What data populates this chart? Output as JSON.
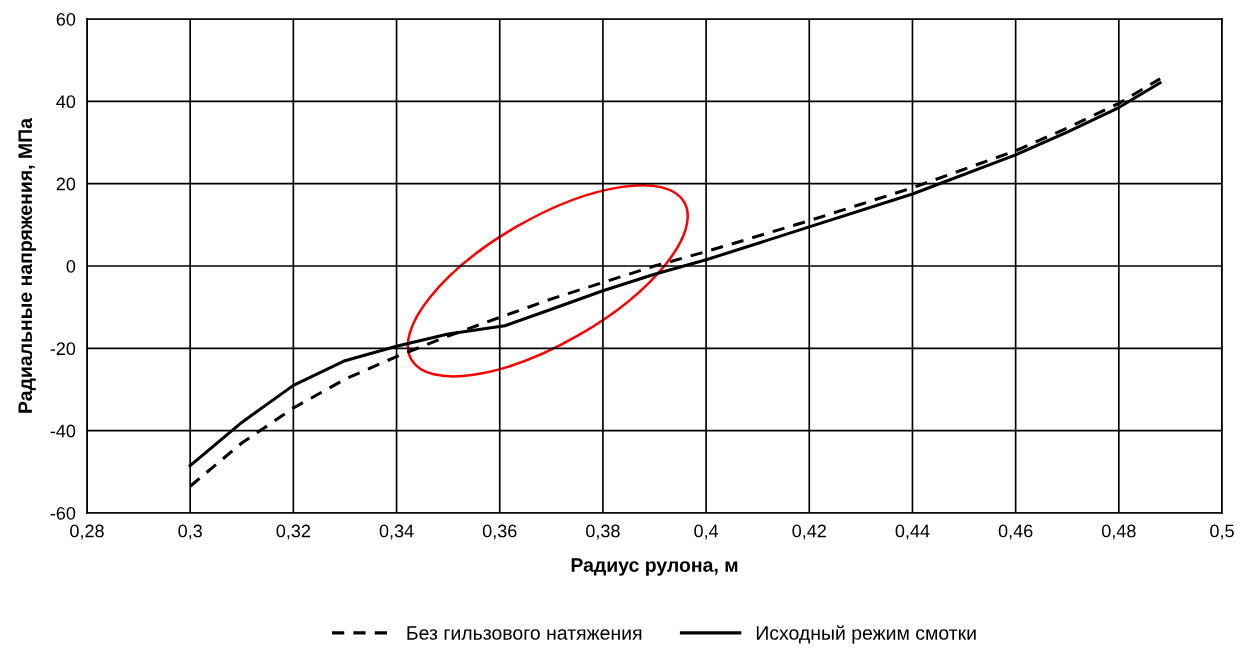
{
  "chart_data": {
    "type": "line",
    "xlabel": "Радиус рулона, м",
    "ylabel": "Радиальные напряжения, МПа",
    "xlim": [
      0.28,
      0.5
    ],
    "xticks": [
      {
        "value": 0.28,
        "label": "0,28"
      },
      {
        "value": 0.3,
        "label": "0,3"
      },
      {
        "value": 0.32,
        "label": "0,32"
      },
      {
        "value": 0.34,
        "label": "0,34"
      },
      {
        "value": 0.36,
        "label": "0,36"
      },
      {
        "value": 0.38,
        "label": "0,38"
      },
      {
        "value": 0.4,
        "label": "0,4"
      },
      {
        "value": 0.42,
        "label": "0,42"
      },
      {
        "value": 0.44,
        "label": "0,44"
      },
      {
        "value": 0.46,
        "label": "0,46"
      },
      {
        "value": 0.48,
        "label": "0,48"
      },
      {
        "value": 0.5,
        "label": "0,5"
      }
    ],
    "ylim": [
      -60,
      60
    ],
    "yticks": [
      -60,
      -40,
      -20,
      0,
      20,
      40,
      60
    ],
    "grid": true,
    "legend": "bottom",
    "series": [
      {
        "name": "Без гильзового натяжения",
        "color": "#000000",
        "line_style": "dashed",
        "x": [
          0.3,
          0.31,
          0.32,
          0.33,
          0.34,
          0.35,
          0.36,
          0.37,
          0.38,
          0.39,
          0.4,
          0.42,
          0.44,
          0.46,
          0.47,
          0.48,
          0.488
        ],
        "values": [
          -53.5,
          -43,
          -34.5,
          -27.5,
          -22,
          -17,
          -12.5,
          -8,
          -4,
          0,
          3.5,
          11,
          19,
          28,
          33.5,
          39.5,
          45.5
        ]
      },
      {
        "name": "Исходный режим смотки",
        "color": "#000000",
        "line_style": "solid",
        "x": [
          0.3,
          0.31,
          0.32,
          0.33,
          0.34,
          0.35,
          0.361,
          0.37,
          0.38,
          0.39,
          0.4,
          0.42,
          0.44,
          0.46,
          0.47,
          0.48,
          0.488
        ],
        "values": [
          -48.5,
          -38,
          -29,
          -23,
          -19.5,
          -16.5,
          -14.5,
          -10.5,
          -6,
          -2,
          1.5,
          9.5,
          17.5,
          27,
          32.5,
          38.5,
          44.5
        ]
      }
    ]
  }
}
